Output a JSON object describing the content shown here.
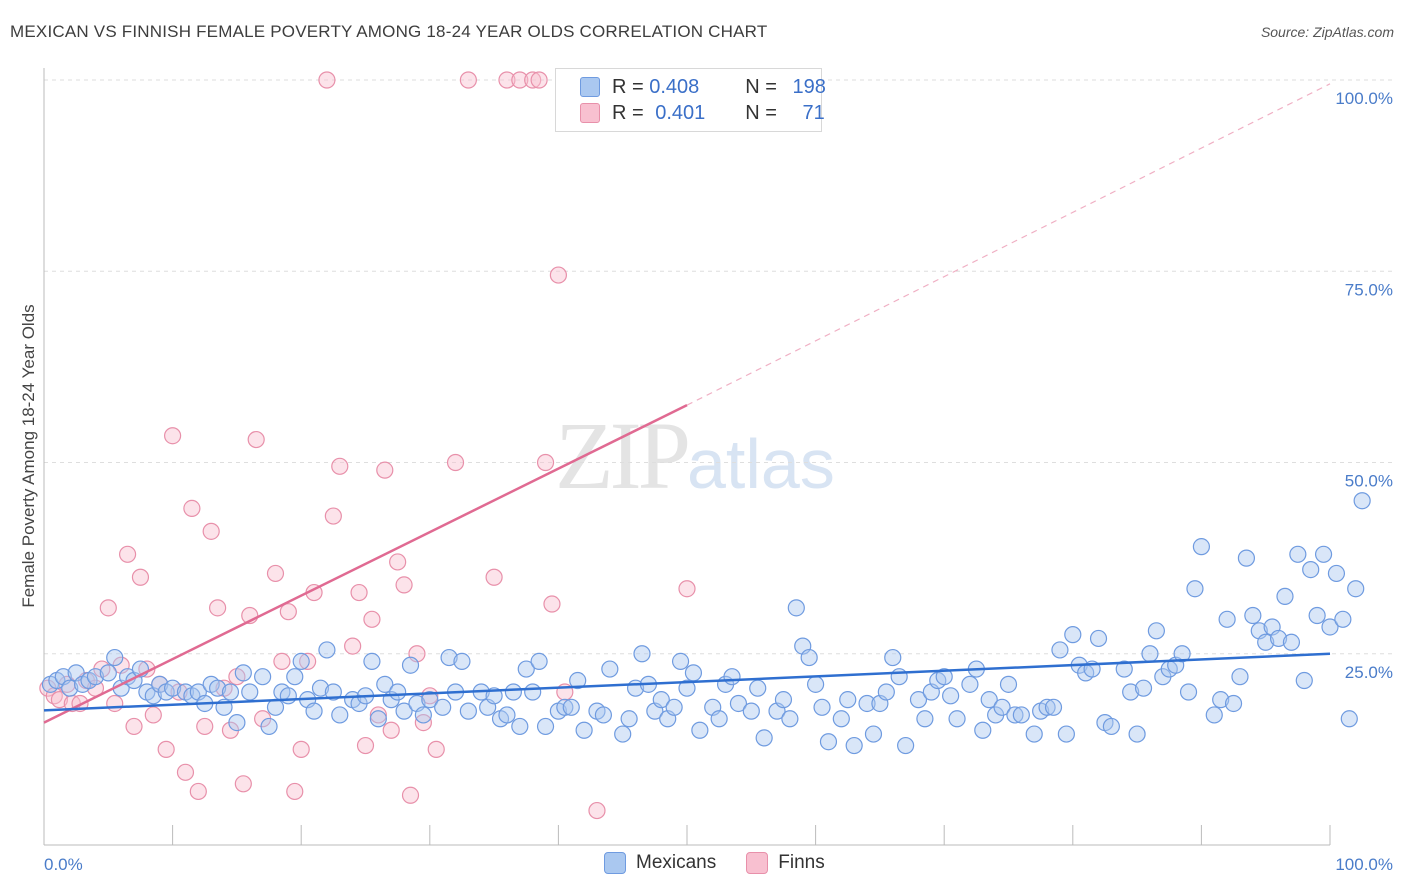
{
  "header": {
    "title": "MEXICAN VS FINNISH FEMALE POVERTY AMONG 18-24 YEAR OLDS CORRELATION CHART",
    "source": "Source: ZipAtlas.com"
  },
  "legend": {
    "r_label": "R = ",
    "n_label": "N = ",
    "series": [
      {
        "r": "0.408",
        "n": "198",
        "color": "#aac8f0",
        "border": "#6f9be0"
      },
      {
        "r": "0.401",
        "n": "71",
        "color": "#f8c0d0",
        "border": "#e890aa"
      }
    ]
  },
  "bottom_legend": [
    {
      "label": "Mexicans",
      "color": "#aac8f0",
      "border": "#6f9be0"
    },
    {
      "label": "Finns",
      "color": "#f8c0d0",
      "border": "#e890aa"
    }
  ],
  "watermark": {
    "zip": "ZIP",
    "atlas": "atlas"
  },
  "chart_data": {
    "type": "scatter",
    "title": "MEXICAN VS FINNISH FEMALE POVERTY AMONG 18-24 YEAR OLDS CORRELATION CHART",
    "xlabel": "",
    "ylabel": "Female Poverty Among 18-24 Year Olds",
    "xlim": [
      0,
      100
    ],
    "ylim": [
      0,
      100
    ],
    "x_tick_labels": [
      "0.0%",
      "100.0%"
    ],
    "y_tick_labels": [
      "25.0%",
      "50.0%",
      "75.0%",
      "100.0%"
    ],
    "y_ticks": [
      25,
      50,
      75,
      100
    ],
    "grid": true,
    "colors": {
      "mexicans": "#7aa5e6",
      "finns": "#f0a0b8",
      "mex_line": "#2f6fd0",
      "fin_line": "#e06a92"
    },
    "series": [
      {
        "name": "Mexicans",
        "trend": {
          "x": [
            0,
            100
          ],
          "y": [
            17.6,
            25.0
          ]
        },
        "points": [
          [
            0.5,
            21
          ],
          [
            1,
            21.5
          ],
          [
            1.5,
            22
          ],
          [
            2,
            20.5
          ],
          [
            2.5,
            22.5
          ],
          [
            3,
            21
          ],
          [
            3.5,
            21.5
          ],
          [
            4,
            22
          ],
          [
            5,
            22.5
          ],
          [
            5.5,
            24.5
          ],
          [
            6,
            20.5
          ],
          [
            6.5,
            22
          ],
          [
            7,
            21.5
          ],
          [
            7.5,
            23
          ],
          [
            8,
            20
          ],
          [
            8.5,
            19.5
          ],
          [
            9,
            21
          ],
          [
            9.5,
            20
          ],
          [
            10,
            20.5
          ],
          [
            11,
            20
          ],
          [
            11.5,
            19.5
          ],
          [
            12,
            20
          ],
          [
            12.5,
            18.5
          ],
          [
            13,
            21
          ],
          [
            13.5,
            20.5
          ],
          [
            14,
            18
          ],
          [
            14.5,
            20
          ],
          [
            15,
            16
          ],
          [
            15.5,
            22.5
          ],
          [
            16,
            20
          ],
          [
            17,
            22
          ],
          [
            17.5,
            15.5
          ],
          [
            18,
            18
          ],
          [
            18.5,
            20
          ],
          [
            19,
            19.5
          ],
          [
            19.5,
            22
          ],
          [
            20,
            24
          ],
          [
            20.5,
            19
          ],
          [
            21,
            17.5
          ],
          [
            21.5,
            20.5
          ],
          [
            22,
            25.5
          ],
          [
            22.5,
            20
          ],
          [
            23,
            17
          ],
          [
            24,
            19
          ],
          [
            24.5,
            18.5
          ],
          [
            25,
            19.5
          ],
          [
            25.5,
            24
          ],
          [
            26,
            16.5
          ],
          [
            26.5,
            21
          ],
          [
            27,
            19
          ],
          [
            27.5,
            20
          ],
          [
            28,
            17.5
          ],
          [
            28.5,
            23.5
          ],
          [
            29,
            18.5
          ],
          [
            29.5,
            17
          ],
          [
            30,
            19
          ],
          [
            31,
            18
          ],
          [
            31.5,
            24.5
          ],
          [
            32,
            20
          ],
          [
            32.5,
            24
          ],
          [
            33,
            17.5
          ],
          [
            34,
            20
          ],
          [
            34.5,
            18
          ],
          [
            35,
            19.5
          ],
          [
            35.5,
            16.5
          ],
          [
            36,
            17
          ],
          [
            36.5,
            20
          ],
          [
            37,
            15.5
          ],
          [
            37.5,
            23
          ],
          [
            38,
            20
          ],
          [
            38.5,
            24
          ],
          [
            39,
            15.5
          ],
          [
            40,
            17.5
          ],
          [
            40.5,
            18
          ],
          [
            41,
            18
          ],
          [
            41.5,
            21.5
          ],
          [
            42,
            15
          ],
          [
            43,
            17.5
          ],
          [
            43.5,
            17
          ],
          [
            44,
            23
          ],
          [
            45,
            14.5
          ],
          [
            45.5,
            16.5
          ],
          [
            46,
            20.5
          ],
          [
            46.5,
            25
          ],
          [
            47,
            21
          ],
          [
            47.5,
            17.5
          ],
          [
            48,
            19
          ],
          [
            48.5,
            16.5
          ],
          [
            49,
            18
          ],
          [
            49.5,
            24
          ],
          [
            50,
            20.5
          ],
          [
            50.5,
            22.5
          ],
          [
            51,
            15
          ],
          [
            52,
            18
          ],
          [
            52.5,
            16.5
          ],
          [
            53,
            21
          ],
          [
            53.5,
            22
          ],
          [
            54,
            18.5
          ],
          [
            55,
            17.5
          ],
          [
            55.5,
            20.5
          ],
          [
            56,
            14
          ],
          [
            57,
            17.5
          ],
          [
            57.5,
            19
          ],
          [
            58,
            16.5
          ],
          [
            58.5,
            31
          ],
          [
            59,
            26
          ],
          [
            59.5,
            24.5
          ],
          [
            60,
            21
          ],
          [
            60.5,
            18
          ],
          [
            61,
            13.5
          ],
          [
            62,
            16.5
          ],
          [
            62.5,
            19
          ],
          [
            63,
            13
          ],
          [
            64,
            18.5
          ],
          [
            64.5,
            14.5
          ],
          [
            65,
            18.5
          ],
          [
            65.5,
            20
          ],
          [
            66,
            24.5
          ],
          [
            66.5,
            22
          ],
          [
            67,
            13
          ],
          [
            68,
            19
          ],
          [
            68.5,
            16.5
          ],
          [
            69,
            20
          ],
          [
            69.5,
            21.5
          ],
          [
            70,
            22
          ],
          [
            70.5,
            19.5
          ],
          [
            71,
            16.5
          ],
          [
            72,
            21
          ],
          [
            72.5,
            23
          ],
          [
            73,
            15
          ],
          [
            73.5,
            19
          ],
          [
            74,
            17
          ],
          [
            74.5,
            18
          ],
          [
            75,
            21
          ],
          [
            75.5,
            17
          ],
          [
            76,
            17
          ],
          [
            77,
            14.5
          ],
          [
            77.5,
            17.5
          ],
          [
            78,
            18
          ],
          [
            78.5,
            18
          ],
          [
            79,
            25.5
          ],
          [
            79.5,
            14.5
          ],
          [
            80,
            27.5
          ],
          [
            80.5,
            23.5
          ],
          [
            81,
            22.5
          ],
          [
            81.5,
            23
          ],
          [
            82,
            27
          ],
          [
            82.5,
            16
          ],
          [
            83,
            15.5
          ],
          [
            84,
            23
          ],
          [
            84.5,
            20
          ],
          [
            85,
            14.5
          ],
          [
            85.5,
            20.5
          ],
          [
            86,
            25
          ],
          [
            86.5,
            28
          ],
          [
            87,
            22
          ],
          [
            87.5,
            23
          ],
          [
            88,
            23.5
          ],
          [
            88.5,
            25
          ],
          [
            89,
            20
          ],
          [
            89.5,
            33.5
          ],
          [
            90,
            39
          ],
          [
            91,
            17
          ],
          [
            91.5,
            19
          ],
          [
            92,
            29.5
          ],
          [
            92.5,
            18.5
          ],
          [
            93,
            22
          ],
          [
            93.5,
            37.5
          ],
          [
            94,
            30
          ],
          [
            94.5,
            28
          ],
          [
            95,
            26.5
          ],
          [
            95.5,
            28.5
          ],
          [
            96,
            27
          ],
          [
            96.5,
            32.5
          ],
          [
            97,
            26.5
          ],
          [
            97.5,
            38
          ],
          [
            98,
            21.5
          ],
          [
            98.5,
            36
          ],
          [
            99,
            30
          ],
          [
            99.5,
            38
          ],
          [
            100,
            28.5
          ],
          [
            100.5,
            35.5
          ],
          [
            101,
            29.5
          ],
          [
            101.5,
            16.5
          ],
          [
            102,
            33.5
          ],
          [
            102.5,
            45
          ]
        ]
      },
      {
        "name": "Finns",
        "trend": {
          "x": [
            0,
            50
          ],
          "y": [
            16.0,
            57.5
          ]
        },
        "trend_ext": {
          "x": [
            50,
            100
          ],
          "y": [
            57.5,
            99.5
          ]
        },
        "points": [
          [
            0.3,
            20.5
          ],
          [
            0.8,
            19.5
          ],
          [
            1.2,
            19
          ],
          [
            1.8,
            21
          ],
          [
            2.2,
            18.5
          ],
          [
            2.8,
            18.5
          ],
          [
            3.3,
            21.5
          ],
          [
            4,
            20.5
          ],
          [
            4.5,
            23
          ],
          [
            5,
            31
          ],
          [
            5.5,
            18.5
          ],
          [
            6,
            23.5
          ],
          [
            6.5,
            38
          ],
          [
            7,
            15.5
          ],
          [
            7.5,
            35
          ],
          [
            8,
            23
          ],
          [
            8.5,
            17
          ],
          [
            9,
            21
          ],
          [
            9.5,
            12.5
          ],
          [
            10,
            53.5
          ],
          [
            10.5,
            20
          ],
          [
            11,
            9.5
          ],
          [
            11.5,
            44
          ],
          [
            12,
            7
          ],
          [
            12.5,
            15.5
          ],
          [
            13,
            41
          ],
          [
            13.5,
            31
          ],
          [
            14,
            20.5
          ],
          [
            14.5,
            15
          ],
          [
            15,
            22
          ],
          [
            15.5,
            8
          ],
          [
            16,
            30
          ],
          [
            16.5,
            53
          ],
          [
            17,
            16.5
          ],
          [
            18,
            35.5
          ],
          [
            18.5,
            24
          ],
          [
            19,
            30.5
          ],
          [
            19.5,
            7
          ],
          [
            20,
            12.5
          ],
          [
            20.5,
            24
          ],
          [
            21,
            33
          ],
          [
            22,
            100
          ],
          [
            22.5,
            43
          ],
          [
            23,
            49.5
          ],
          [
            24,
            26
          ],
          [
            24.5,
            33
          ],
          [
            25,
            13
          ],
          [
            25.5,
            29.5
          ],
          [
            26,
            17
          ],
          [
            26.5,
            49
          ],
          [
            27,
            15
          ],
          [
            27.5,
            37
          ],
          [
            28,
            34
          ],
          [
            28.5,
            6.5
          ],
          [
            29,
            25
          ],
          [
            29.5,
            16
          ],
          [
            30,
            19.5
          ],
          [
            30.5,
            12.5
          ],
          [
            32,
            50
          ],
          [
            33,
            100
          ],
          [
            35,
            35
          ],
          [
            36,
            100
          ],
          [
            37,
            100
          ],
          [
            38,
            100
          ],
          [
            38.5,
            100
          ],
          [
            39,
            50
          ],
          [
            39.5,
            31.5
          ],
          [
            40,
            74.5
          ],
          [
            40.5,
            20
          ],
          [
            43,
            4.5
          ],
          [
            50,
            33.5
          ]
        ]
      }
    ]
  }
}
